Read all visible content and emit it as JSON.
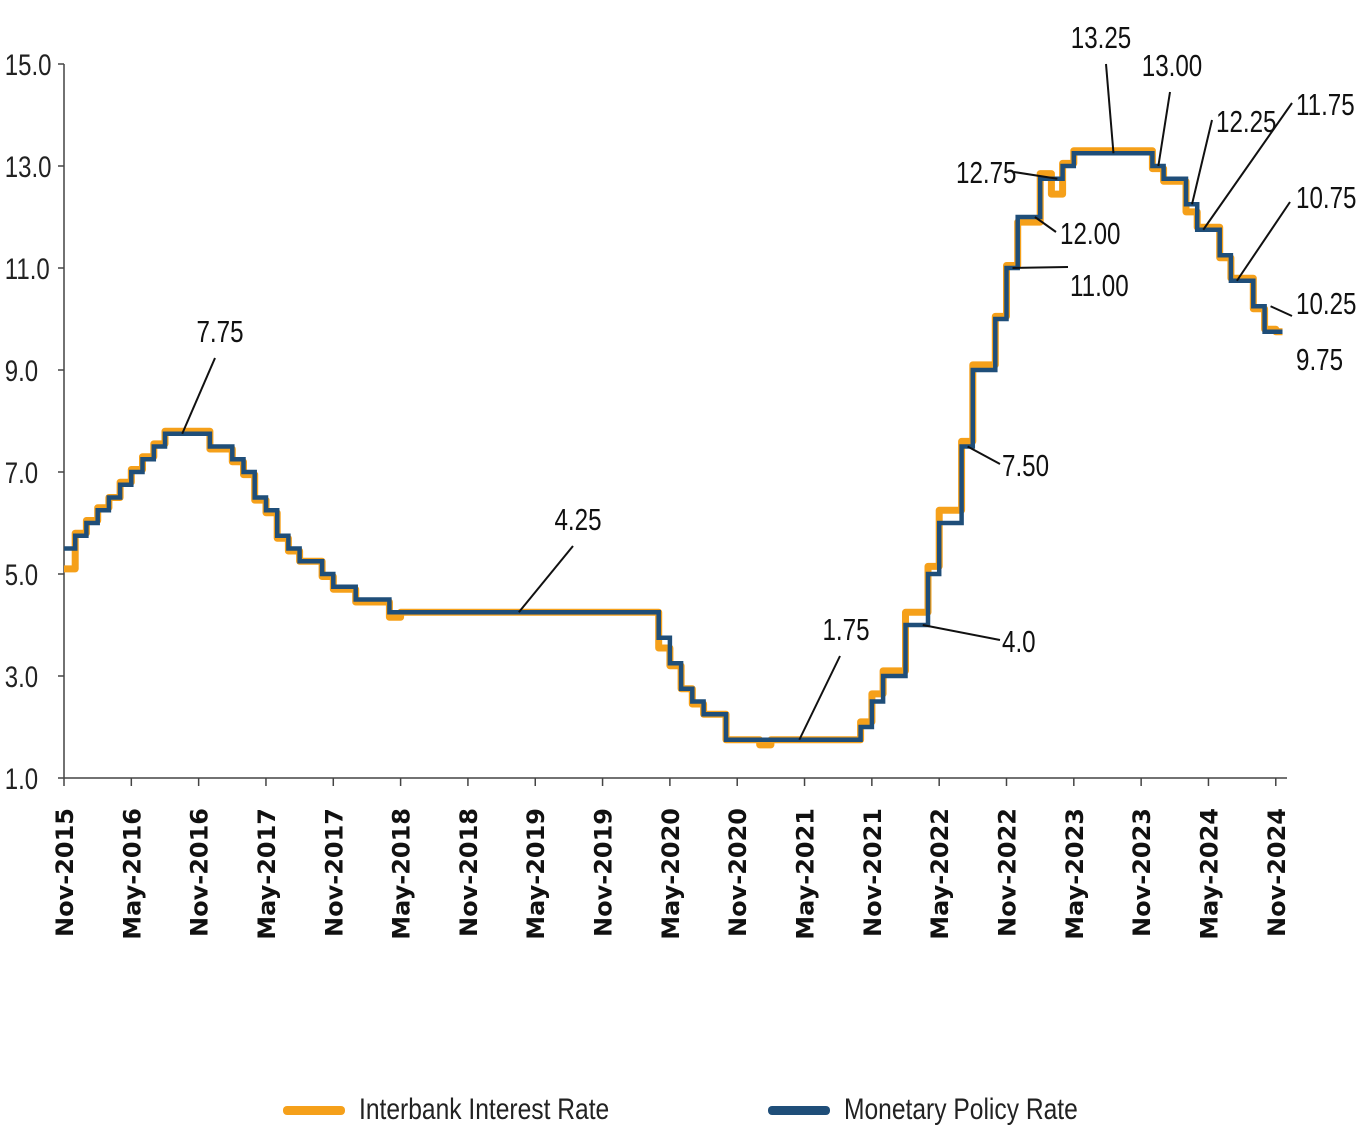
{
  "colors": {
    "interbank": "#F5A01A",
    "policy": "#1F4E79",
    "axis": "#444444",
    "text": "#111111"
  },
  "legend": {
    "interbank_label": "Interbank Interest Rate",
    "policy_label": "Monetary Policy Rate"
  },
  "chart_data": {
    "type": "line",
    "x_start": "Nov-2015",
    "x_end": "Dec-2024",
    "ylim": [
      1.0,
      15.0
    ],
    "yticks": [
      "1.0",
      "3.0",
      "5.0",
      "7.0",
      "9.0",
      "11.0",
      "13.0",
      "15.0"
    ],
    "xticks": [
      "Nov-2015",
      "May-2016",
      "Nov-2016",
      "May-2017",
      "Nov-2017",
      "May-2018",
      "Nov-2018",
      "May-2019",
      "Nov-2019",
      "May-2020",
      "Nov-2020",
      "May-2021",
      "Nov-2021",
      "May-2022",
      "Nov-2022",
      "May-2023",
      "Nov-2023",
      "May-2024",
      "Nov-2024"
    ],
    "series": [
      {
        "name": "Monetary Policy Rate",
        "step": true,
        "points": [
          [
            "Nov-2015",
            5.5
          ],
          [
            "Dec-2015",
            5.75
          ],
          [
            "Jan-2016",
            6.0
          ],
          [
            "Feb-2016",
            6.25
          ],
          [
            "Mar-2016",
            6.5
          ],
          [
            "Apr-2016",
            6.75
          ],
          [
            "May-2016",
            7.0
          ],
          [
            "Jun-2016",
            7.25
          ],
          [
            "Jul-2016",
            7.5
          ],
          [
            "Aug-2016",
            7.75
          ],
          [
            "Dec-2016",
            7.5
          ],
          [
            "Feb-2017",
            7.25
          ],
          [
            "Mar-2017",
            7.0
          ],
          [
            "Apr-2017",
            6.5
          ],
          [
            "May-2017",
            6.25
          ],
          [
            "Jun-2017",
            5.75
          ],
          [
            "Jul-2017",
            5.5
          ],
          [
            "Aug-2017",
            5.25
          ],
          [
            "Oct-2017",
            5.0
          ],
          [
            "Nov-2017",
            4.75
          ],
          [
            "Jan-2018",
            4.5
          ],
          [
            "Apr-2018",
            4.25
          ],
          [
            "Apr-2020",
            3.75
          ],
          [
            "May-2020",
            3.25
          ],
          [
            "Jun-2020",
            2.75
          ],
          [
            "Jul-2020",
            2.5
          ],
          [
            "Aug-2020",
            2.25
          ],
          [
            "Oct-2020",
            1.75
          ],
          [
            "Oct-2021",
            2.0
          ],
          [
            "Nov-2021",
            2.5
          ],
          [
            "Dec-2021",
            3.0
          ],
          [
            "Feb-2022",
            4.0
          ],
          [
            "Apr-2022",
            5.0
          ],
          [
            "May-2022",
            6.0
          ],
          [
            "Jul-2022",
            7.5
          ],
          [
            "Aug-2022",
            9.0
          ],
          [
            "Oct-2022",
            10.0
          ],
          [
            "Nov-2022",
            11.0
          ],
          [
            "Dec-2022",
            12.0
          ],
          [
            "Feb-2023",
            12.75
          ],
          [
            "Apr-2023",
            13.0
          ],
          [
            "May-2023",
            13.25
          ],
          [
            "Dec-2023",
            13.0
          ],
          [
            "Jan-2024",
            12.75
          ],
          [
            "Mar-2024",
            12.25
          ],
          [
            "Apr-2024",
            11.75
          ],
          [
            "Jun-2024",
            11.25
          ],
          [
            "Jul-2024",
            10.75
          ],
          [
            "Sep-2024",
            10.25
          ],
          [
            "Oct-2024",
            9.75
          ],
          [
            "Nov-2024",
            9.75
          ]
        ]
      },
      {
        "name": "Interbank Interest Rate",
        "step": true,
        "points": [
          [
            "Nov-2015",
            5.1
          ],
          [
            "Dec-2015",
            5.8
          ],
          [
            "Jan-2016",
            6.05
          ],
          [
            "Feb-2016",
            6.3
          ],
          [
            "Mar-2016",
            6.5
          ],
          [
            "Apr-2016",
            6.8
          ],
          [
            "May-2016",
            7.05
          ],
          [
            "Jun-2016",
            7.3
          ],
          [
            "Jul-2016",
            7.55
          ],
          [
            "Aug-2016",
            7.8
          ],
          [
            "Dec-2016",
            7.45
          ],
          [
            "Feb-2017",
            7.2
          ],
          [
            "Mar-2017",
            6.95
          ],
          [
            "Apr-2017",
            6.45
          ],
          [
            "May-2017",
            6.2
          ],
          [
            "Jun-2017",
            5.7
          ],
          [
            "Jul-2017",
            5.45
          ],
          [
            "Aug-2017",
            5.25
          ],
          [
            "Oct-2017",
            4.95
          ],
          [
            "Nov-2017",
            4.7
          ],
          [
            "Jan-2018",
            4.45
          ],
          [
            "Apr-2018",
            4.15
          ],
          [
            "May-2018",
            4.25
          ],
          [
            "Apr-2020",
            3.55
          ],
          [
            "May-2020",
            3.2
          ],
          [
            "Jun-2020",
            2.75
          ],
          [
            "Jul-2020",
            2.45
          ],
          [
            "Aug-2020",
            2.25
          ],
          [
            "Oct-2020",
            1.75
          ],
          [
            "Jan-2021",
            1.65
          ],
          [
            "Feb-2021",
            1.75
          ],
          [
            "Oct-2021",
            2.1
          ],
          [
            "Nov-2021",
            2.65
          ],
          [
            "Dec-2021",
            3.1
          ],
          [
            "Feb-2022",
            4.25
          ],
          [
            "Apr-2022",
            5.15
          ],
          [
            "May-2022",
            6.25
          ],
          [
            "Jul-2022",
            7.6
          ],
          [
            "Aug-2022",
            9.1
          ],
          [
            "Oct-2022",
            10.05
          ],
          [
            "Nov-2022",
            11.05
          ],
          [
            "Dec-2022",
            11.9
          ],
          [
            "Feb-2023",
            12.85
          ],
          [
            "Mar-2023",
            12.45
          ],
          [
            "Apr-2023",
            13.05
          ],
          [
            "May-2023",
            13.3
          ],
          [
            "Dec-2023",
            12.95
          ],
          [
            "Jan-2024",
            12.7
          ],
          [
            "Mar-2024",
            12.1
          ],
          [
            "Apr-2024",
            11.8
          ],
          [
            "Jun-2024",
            11.2
          ],
          [
            "Jul-2024",
            10.8
          ],
          [
            "Sep-2024",
            10.2
          ],
          [
            "Oct-2024",
            9.8
          ],
          [
            "Nov-2024",
            9.75
          ]
        ]
      }
    ],
    "annotations": [
      {
        "label": "7.75",
        "date": "Sep-2016",
        "value": 7.75
      },
      {
        "label": "4.25",
        "date": "Mar-2019",
        "value": 4.25
      },
      {
        "label": "1.75",
        "date": "Apr-2021",
        "value": 1.75
      },
      {
        "label": "4.0",
        "date": "Mar-2022",
        "value": 4.0
      },
      {
        "label": "7.50",
        "date": "Jul-2022",
        "value": 7.5
      },
      {
        "label": "11.00",
        "date": "Nov-2022",
        "value": 11.0
      },
      {
        "label": "12.00",
        "date": "Jan-2023",
        "value": 12.0
      },
      {
        "label": "12.75",
        "date": "Mar-2023",
        "value": 12.75
      },
      {
        "label": "13.25",
        "date": "Aug-2023",
        "value": 13.25
      },
      {
        "label": "13.00",
        "date": "Dec-2023",
        "value": 13.0
      },
      {
        "label": "12.25",
        "date": "Mar-2024",
        "value": 12.25
      },
      {
        "label": "11.75",
        "date": "Apr-2024",
        "value": 11.75
      },
      {
        "label": "10.75",
        "date": "Jul-2024",
        "value": 10.75
      },
      {
        "label": "10.25",
        "date": "Oct-2024",
        "value": 10.25
      },
      {
        "label": "9.75",
        "date": "Nov-2024",
        "value": 9.75
      }
    ]
  }
}
